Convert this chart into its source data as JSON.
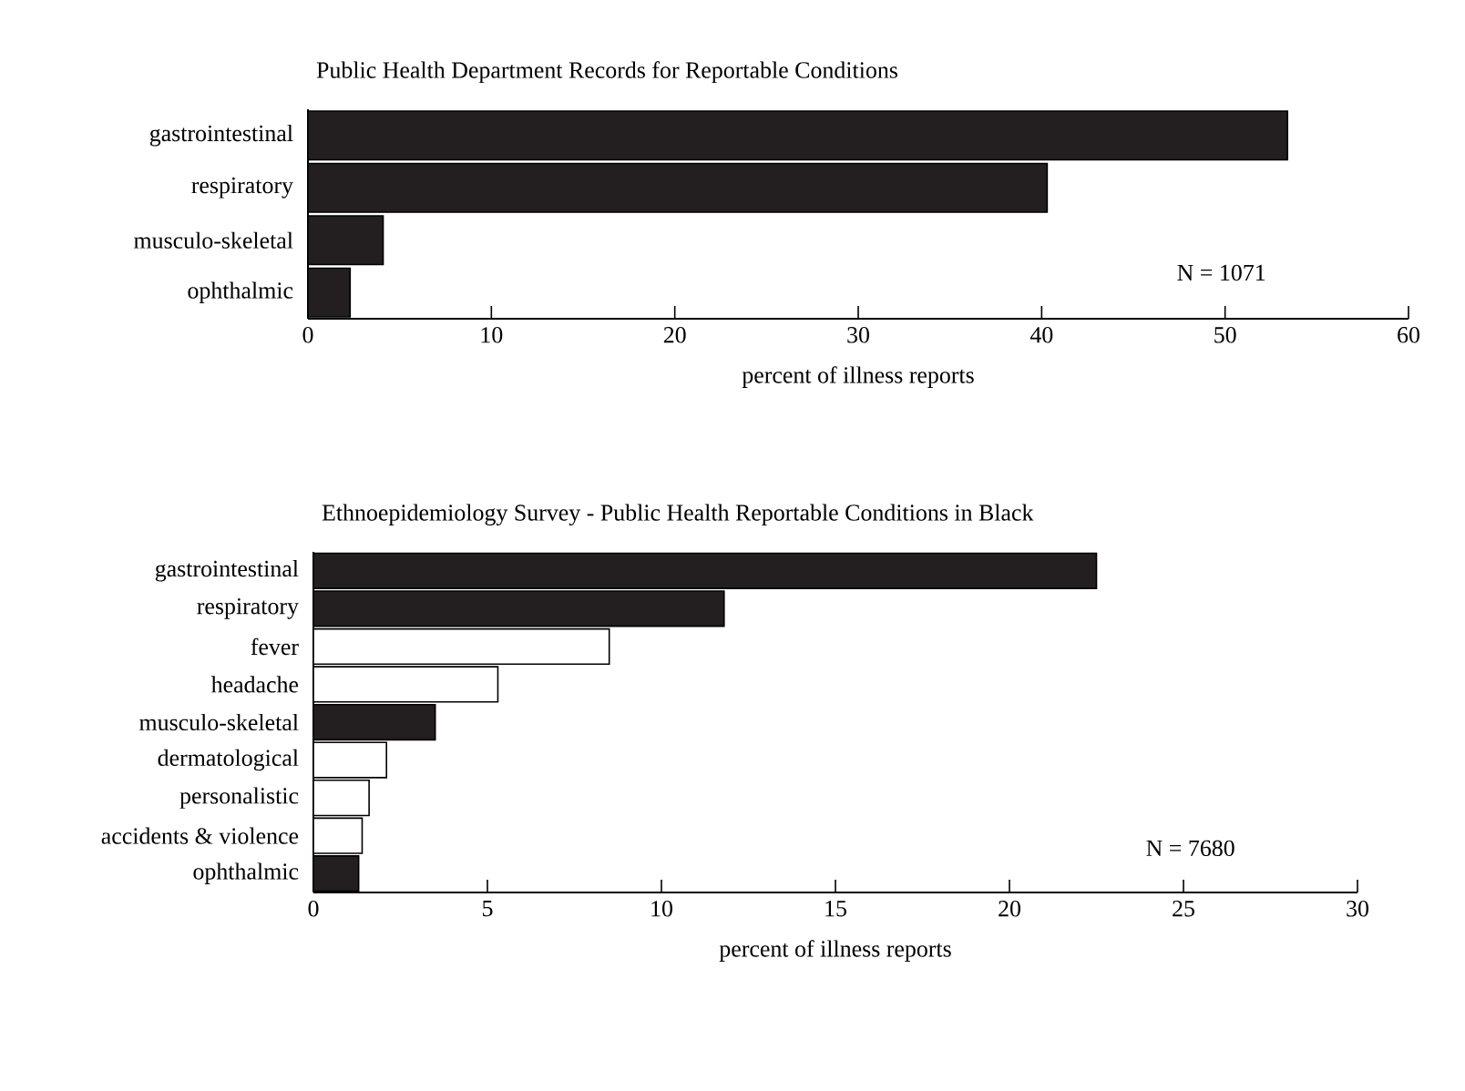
{
  "chart_data": [
    {
      "type": "bar",
      "orientation": "horizontal",
      "title": "Public Health Department Records for Reportable Conditions",
      "xlabel": "percent of illness reports",
      "categories": [
        "gastrointestinal",
        "respiratory",
        "musculo-skeletal",
        "ophthalmic"
      ],
      "values": [
        53.4,
        40.3,
        4.1,
        2.3
      ],
      "colors": [
        "#231f20",
        "#231f20",
        "#231f20",
        "#231f20"
      ],
      "xlim": [
        0,
        60
      ],
      "xticks": [
        0,
        10,
        20,
        30,
        40,
        50,
        60
      ],
      "annotations": [
        "N = 1071"
      ]
    },
    {
      "type": "bar",
      "orientation": "horizontal",
      "title": "Ethnoepidemiology Survey - Public Health Reportable Conditions in Black",
      "xlabel": "percent of illness reports",
      "categories": [
        "gastrointestinal",
        "respiratory",
        "fever",
        "headache",
        "musculo-skeletal",
        "dermatological",
        "personalistic",
        "accidents & violence",
        "ophthalmic"
      ],
      "values": [
        22.5,
        11.8,
        8.5,
        5.3,
        3.5,
        2.1,
        1.6,
        1.4,
        1.3
      ],
      "colors": [
        "#231f20",
        "#231f20",
        "#ffffff",
        "#ffffff",
        "#231f20",
        "#ffffff",
        "#ffffff",
        "#ffffff",
        "#231f20"
      ],
      "xlim": [
        0,
        30
      ],
      "xticks": [
        0,
        5,
        10,
        15,
        20,
        25,
        30
      ],
      "annotations": [
        "N = 7680"
      ]
    }
  ]
}
